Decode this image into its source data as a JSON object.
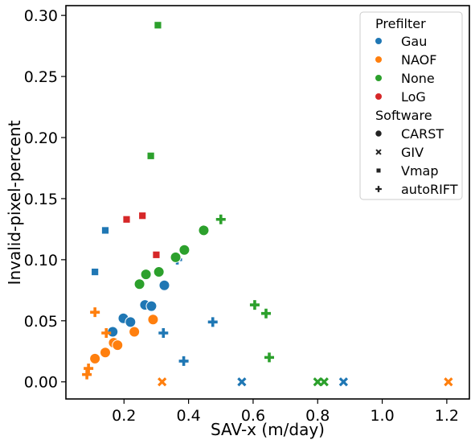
{
  "chart_data": {
    "type": "scatter",
    "xlabel": "SAV-x (m/day)",
    "ylabel": "Invalid-pixel-percent",
    "xlim": [
      0.02,
      1.27
    ],
    "ylim": [
      -0.014,
      0.308
    ],
    "xticks": [
      0.2,
      0.4,
      0.6,
      0.8,
      1.0,
      1.2
    ],
    "xtick_labels": [
      "0.2",
      "0.4",
      "0.6",
      "0.8",
      "1.0",
      "1.2"
    ],
    "yticks": [
      0.0,
      0.05,
      0.1,
      0.15,
      0.2,
      0.25,
      0.3
    ],
    "ytick_labels": [
      "0.00",
      "0.05",
      "0.10",
      "0.15",
      "0.20",
      "0.25",
      "0.30"
    ],
    "grid": false,
    "legend_placement": "top-right",
    "legend": {
      "hue_title": "Prefilter",
      "hue_entries": [
        {
          "label": "Gau",
          "color": "#1f77b4"
        },
        {
          "label": "NAOF",
          "color": "#ff7f0e"
        },
        {
          "label": "None",
          "color": "#2ca02c"
        },
        {
          "label": "LoG",
          "color": "#d62728"
        }
      ],
      "style_title": "Software",
      "style_entries": [
        {
          "label": "CARST",
          "marker": "circle"
        },
        {
          "label": "GIV",
          "marker": "x"
        },
        {
          "label": "Vmap",
          "marker": "square"
        },
        {
          "label": "autoRIFT",
          "marker": "plus"
        }
      ]
    },
    "series": [
      {
        "prefilter": "Gau",
        "software": "CARST",
        "color": "#1f77b4",
        "marker": "circle",
        "points": [
          [
            0.165,
            0.041
          ],
          [
            0.198,
            0.052
          ],
          [
            0.22,
            0.049
          ],
          [
            0.265,
            0.063
          ],
          [
            0.285,
            0.062
          ],
          [
            0.325,
            0.079
          ]
        ]
      },
      {
        "prefilter": "Gau",
        "software": "GIV",
        "color": "#1f77b4",
        "marker": "x",
        "points": [
          [
            0.565,
            0.0
          ],
          [
            0.88,
            0.0
          ]
        ]
      },
      {
        "prefilter": "Gau",
        "software": "Vmap",
        "color": "#1f77b4",
        "marker": "square",
        "points": [
          [
            0.11,
            0.09
          ],
          [
            0.142,
            0.124
          ]
        ]
      },
      {
        "prefilter": "Gau",
        "software": "autoRIFT",
        "color": "#1f77b4",
        "marker": "plus",
        "points": [
          [
            0.385,
            0.017
          ],
          [
            0.322,
            0.04
          ],
          [
            0.475,
            0.049
          ],
          [
            0.365,
            0.1
          ]
        ]
      },
      {
        "prefilter": "NAOF",
        "software": "CARST",
        "color": "#ff7f0e",
        "marker": "circle",
        "points": [
          [
            0.11,
            0.019
          ],
          [
            0.142,
            0.024
          ],
          [
            0.168,
            0.032
          ],
          [
            0.18,
            0.03
          ],
          [
            0.232,
            0.041
          ],
          [
            0.29,
            0.051
          ]
        ]
      },
      {
        "prefilter": "NAOF",
        "software": "GIV",
        "color": "#ff7f0e",
        "marker": "x",
        "points": [
          [
            0.318,
            0.0
          ],
          [
            1.205,
            0.0
          ]
        ]
      },
      {
        "prefilter": "NAOF",
        "software": "autoRIFT",
        "color": "#ff7f0e",
        "marker": "plus",
        "points": [
          [
            0.085,
            0.006
          ],
          [
            0.09,
            0.011
          ],
          [
            0.145,
            0.04
          ],
          [
            0.11,
            0.057
          ]
        ]
      },
      {
        "prefilter": "None",
        "software": "CARST",
        "color": "#2ca02c",
        "marker": "circle",
        "points": [
          [
            0.248,
            0.08
          ],
          [
            0.268,
            0.088
          ],
          [
            0.308,
            0.09
          ],
          [
            0.36,
            0.102
          ],
          [
            0.387,
            0.108
          ],
          [
            0.447,
            0.124
          ]
        ]
      },
      {
        "prefilter": "None",
        "software": "GIV",
        "color": "#2ca02c",
        "marker": "x",
        "points": [
          [
            0.8,
            0.0
          ],
          [
            0.82,
            0.0
          ]
        ]
      },
      {
        "prefilter": "None",
        "software": "Vmap",
        "color": "#2ca02c",
        "marker": "square",
        "points": [
          [
            0.283,
            0.185
          ],
          [
            0.305,
            0.292
          ]
        ]
      },
      {
        "prefilter": "None",
        "software": "autoRIFT",
        "color": "#2ca02c",
        "marker": "plus",
        "points": [
          [
            0.65,
            0.02
          ],
          [
            0.64,
            0.056
          ],
          [
            0.605,
            0.063
          ],
          [
            0.5,
            0.133
          ]
        ]
      },
      {
        "prefilter": "LoG",
        "software": "Vmap",
        "color": "#d62728",
        "marker": "square",
        "points": [
          [
            0.3,
            0.104
          ],
          [
            0.208,
            0.133
          ],
          [
            0.257,
            0.136
          ]
        ]
      }
    ]
  }
}
